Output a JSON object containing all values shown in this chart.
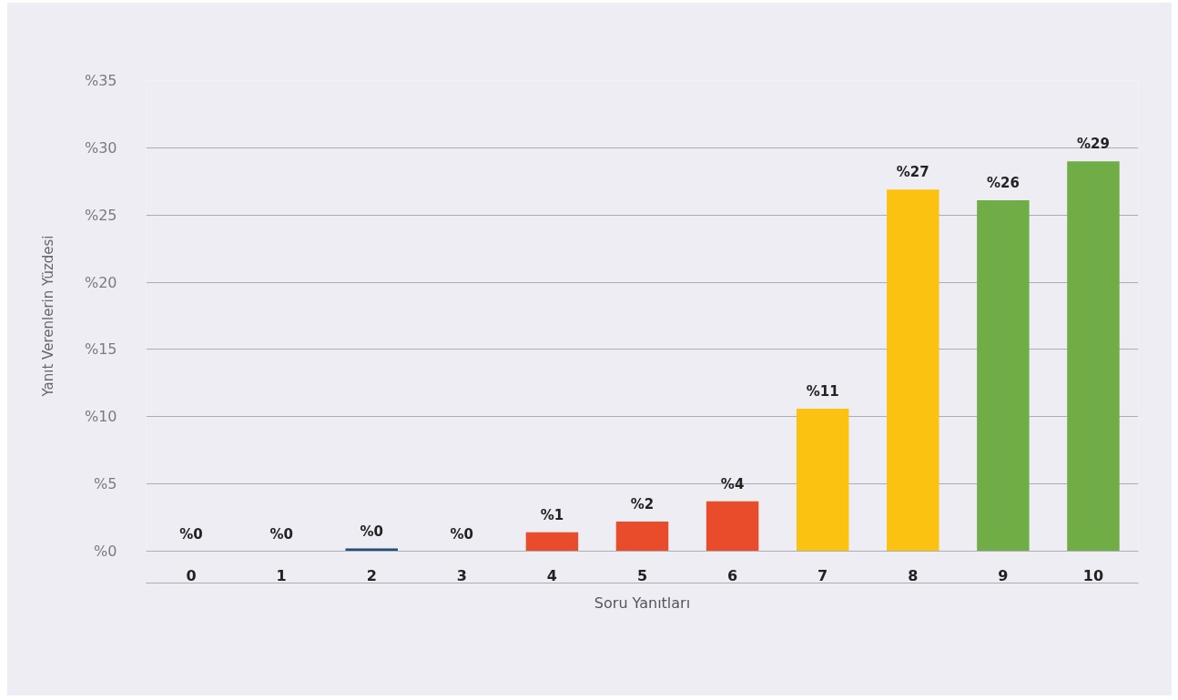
{
  "chart_data": {
    "type": "bar",
    "xlabel": "Soru Yanıtları",
    "ylabel": "Yanıt Verenlerin Yüzdesi",
    "categories": [
      "0",
      "1",
      "2",
      "3",
      "4",
      "5",
      "6",
      "7",
      "8",
      "9",
      "10"
    ],
    "values": [
      0,
      0,
      0.2,
      0,
      1.4,
      2.2,
      3.7,
      10.6,
      26.9,
      26.1,
      29.0
    ],
    "colors": [
      "#1f4e79",
      "#1f4e79",
      "#1f4e79",
      "#1f4e79",
      "#e84c2b",
      "#e84c2b",
      "#e84c2b",
      "#fcc212",
      "#fcc212",
      "#70ad47",
      "#70ad47"
    ],
    "value_labels": [
      "%0",
      "%0",
      "%0",
      "%0",
      "%1",
      "%2",
      "%4",
      "%11",
      "%27",
      "%26",
      "%29"
    ],
    "ylim": [
      0,
      35
    ],
    "yticks": [
      {
        "value": 0,
        "label": "%0"
      },
      {
        "value": 5,
        "label": "%5"
      },
      {
        "value": 10,
        "label": "%10"
      },
      {
        "value": 15,
        "label": "%15"
      },
      {
        "value": 20,
        "label": "%20"
      },
      {
        "value": 25,
        "label": "%25"
      },
      {
        "value": 30,
        "label": "%30"
      },
      {
        "value": 35,
        "label": "%35"
      }
    ],
    "grid": "y"
  }
}
